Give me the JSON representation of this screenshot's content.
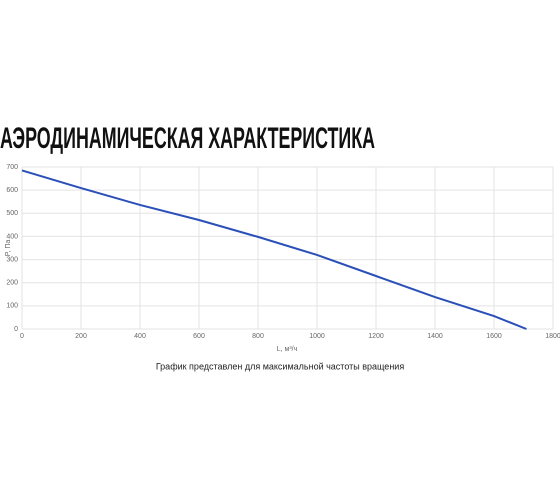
{
  "chart_data": {
    "type": "line",
    "title": "АЭРОДИНАМИЧЕСКАЯ ХАРАКТЕРИСТИКА",
    "x_label": "L, м³/ч",
    "y_label": "P, Па",
    "caption": "График представлен для максимальной частоты вращения",
    "x": [
      0,
      200,
      400,
      600,
      800,
      1000,
      1200,
      1400,
      1600,
      1710
    ],
    "series": [
      {
        "name": "P, Па",
        "color": "#2a4fb8",
        "values": [
          685,
          609,
          536,
          471,
          398,
          320,
          229,
          138,
          56,
          0
        ]
      }
    ],
    "xlim": [
      0,
      1800
    ],
    "xticks": [
      0,
      200,
      400,
      600,
      800,
      1000,
      1200,
      1400,
      1600,
      1800
    ],
    "ylim": [
      0,
      700
    ],
    "yticks": [
      0,
      100,
      200,
      300,
      400,
      500,
      600,
      700
    ],
    "grid": true
  }
}
